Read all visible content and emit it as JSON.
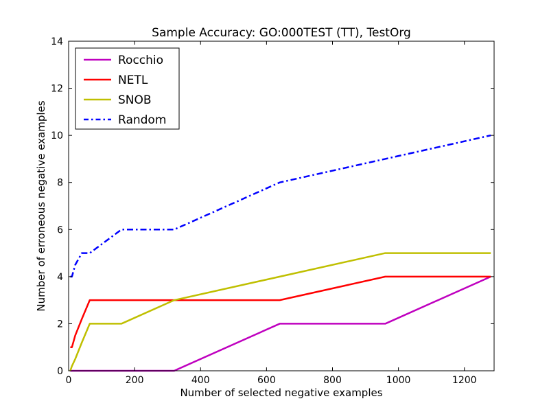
{
  "chart_data": {
    "type": "line",
    "title": "Sample Accuracy: GO:000TEST (TT), TestOrg",
    "xlabel": "Number of selected negative examples",
    "ylabel": "Number of erroneous negative examples",
    "xlim": [
      0,
      1290
    ],
    "ylim": [
      0,
      14
    ],
    "xticks": [
      0,
      200,
      400,
      600,
      800,
      1000,
      1200
    ],
    "yticks": [
      0,
      2,
      4,
      6,
      8,
      10,
      12,
      14
    ],
    "grid": false,
    "legend_position": "top-left",
    "series": [
      {
        "name": "Rocchio",
        "color": "#bf00bf",
        "style": "solid",
        "points": [
          [
            5,
            0
          ],
          [
            10,
            0
          ],
          [
            20,
            0
          ],
          [
            40,
            0
          ],
          [
            80,
            0
          ],
          [
            160,
            0
          ],
          [
            320,
            0
          ],
          [
            640,
            2
          ],
          [
            960,
            2
          ],
          [
            1280,
            4
          ]
        ]
      },
      {
        "name": "NETL",
        "color": "#ff0000",
        "style": "solid",
        "points": [
          [
            5,
            1
          ],
          [
            10,
            1
          ],
          [
            20,
            1.5
          ],
          [
            40,
            2.2
          ],
          [
            64,
            3
          ],
          [
            160,
            3
          ],
          [
            320,
            3
          ],
          [
            640,
            3
          ],
          [
            960,
            4
          ],
          [
            1280,
            4
          ]
        ]
      },
      {
        "name": "SNOB",
        "color": "#bfbf00",
        "style": "solid",
        "points": [
          [
            5,
            0
          ],
          [
            10,
            0.2
          ],
          [
            20,
            0.5
          ],
          [
            40,
            1.2
          ],
          [
            64,
            2
          ],
          [
            160,
            2
          ],
          [
            320,
            3
          ],
          [
            640,
            4
          ],
          [
            960,
            5
          ],
          [
            1280,
            5
          ]
        ]
      },
      {
        "name": "Random",
        "color": "#0000ff",
        "style": "dashdot",
        "points": [
          [
            5,
            4
          ],
          [
            10,
            4
          ],
          [
            20,
            4.5
          ],
          [
            40,
            5
          ],
          [
            64,
            5
          ],
          [
            160,
            6
          ],
          [
            320,
            6
          ],
          [
            640,
            8
          ],
          [
            960,
            9
          ],
          [
            1280,
            10
          ]
        ]
      }
    ]
  }
}
